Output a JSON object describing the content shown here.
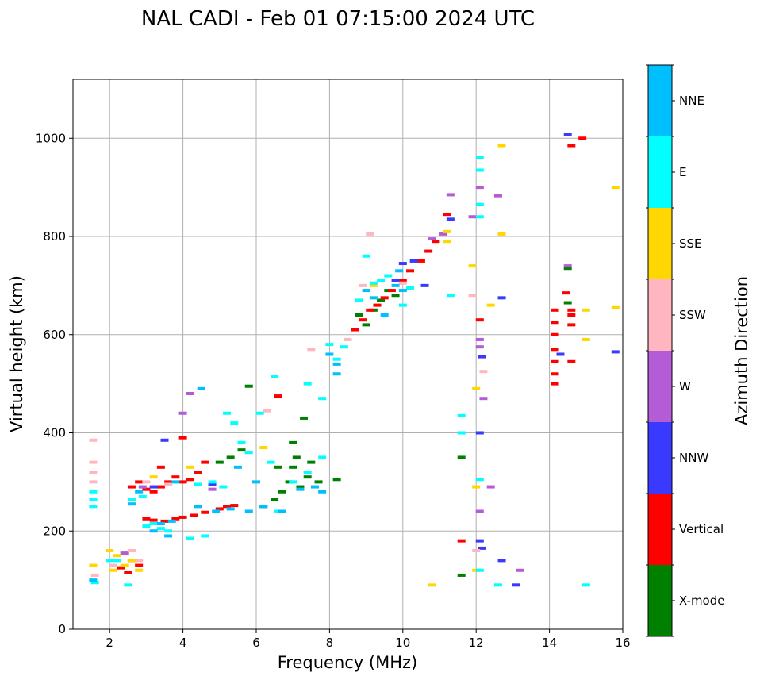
{
  "chart_data": {
    "type": "scatter",
    "title": "NAL CADI - Feb 01 07:15:00 2024 UTC",
    "xlabel": "Frequency (MHz)",
    "ylabel": "Virtual height (km)",
    "xlim": [
      1.0,
      16.0
    ],
    "ylim": [
      0,
      1120
    ],
    "xticks": [
      2,
      4,
      6,
      8,
      10,
      12,
      14,
      16
    ],
    "yticks": [
      0,
      200,
      400,
      600,
      800,
      1000
    ],
    "grid": true,
    "colorbar": {
      "label": "Azimuth Direction",
      "categories": [
        "X-mode",
        "Vertical",
        "NNW",
        "W",
        "SSW",
        "SSE",
        "E",
        "NNE"
      ],
      "colors": [
        "#008000",
        "#ff0000",
        "#3a3aff",
        "#b45bd6",
        "#ffb6c1",
        "#ffd700",
        "#00ffff",
        "#00bfff"
      ]
    },
    "series": [
      {
        "name": "X-mode",
        "points": [
          [
            5.0,
            340
          ],
          [
            5.3,
            350
          ],
          [
            5.6,
            365
          ],
          [
            6.2,
            250
          ],
          [
            6.5,
            265
          ],
          [
            6.7,
            280
          ],
          [
            6.9,
            300
          ],
          [
            7.0,
            330
          ],
          [
            7.1,
            350
          ],
          [
            7.2,
            290
          ],
          [
            7.4,
            310
          ],
          [
            7.5,
            340
          ],
          [
            7.7,
            300
          ],
          [
            8.2,
            305
          ],
          [
            8.8,
            640
          ],
          [
            9.0,
            620
          ],
          [
            9.2,
            650
          ],
          [
            9.4,
            670
          ],
          [
            9.6,
            690
          ],
          [
            9.8,
            680
          ],
          [
            7.3,
            430
          ],
          [
            14.5,
            735
          ],
          [
            14.5,
            665
          ],
          [
            11.6,
            350
          ],
          [
            11.6,
            110
          ],
          [
            5.8,
            495
          ],
          [
            7.0,
            380
          ],
          [
            6.6,
            330
          ]
        ]
      },
      {
        "name": "Vertical",
        "points": [
          [
            2.6,
            290
          ],
          [
            2.8,
            300
          ],
          [
            3.0,
            285
          ],
          [
            3.2,
            280
          ],
          [
            3.4,
            290
          ],
          [
            3.6,
            300
          ],
          [
            3.8,
            310
          ],
          [
            4.0,
            300
          ],
          [
            4.2,
            305
          ],
          [
            4.4,
            320
          ],
          [
            3.0,
            225
          ],
          [
            3.2,
            222
          ],
          [
            3.5,
            220
          ],
          [
            3.8,
            225
          ],
          [
            4.0,
            228
          ],
          [
            4.3,
            232
          ],
          [
            4.6,
            238
          ],
          [
            5.0,
            245
          ],
          [
            5.4,
            252
          ],
          [
            2.6,
            140
          ],
          [
            2.8,
            130
          ],
          [
            2.3,
            125
          ],
          [
            2.5,
            115
          ],
          [
            8.7,
            610
          ],
          [
            8.9,
            630
          ],
          [
            9.1,
            650
          ],
          [
            9.3,
            660
          ],
          [
            9.5,
            675
          ],
          [
            9.7,
            690
          ],
          [
            10.0,
            710
          ],
          [
            10.2,
            730
          ],
          [
            10.5,
            750
          ],
          [
            10.7,
            770
          ],
          [
            10.9,
            790
          ],
          [
            11.2,
            845
          ],
          [
            14.15,
            500
          ],
          [
            14.15,
            520
          ],
          [
            14.15,
            545
          ],
          [
            14.15,
            570
          ],
          [
            14.15,
            600
          ],
          [
            14.15,
            625
          ],
          [
            14.15,
            650
          ],
          [
            14.45,
            685
          ],
          [
            14.6,
            620
          ],
          [
            14.6,
            640
          ],
          [
            14.6,
            650
          ],
          [
            14.6,
            545
          ],
          [
            14.6,
            985
          ],
          [
            14.9,
            1000
          ],
          [
            12.1,
            630
          ],
          [
            11.6,
            180
          ],
          [
            6.6,
            475
          ],
          [
            3.4,
            330
          ],
          [
            4.0,
            390
          ],
          [
            4.6,
            340
          ],
          [
            5.2,
            250
          ]
        ]
      },
      {
        "name": "NNW",
        "points": [
          [
            3.5,
            385
          ],
          [
            3.2,
            290
          ],
          [
            10.0,
            745
          ],
          [
            10.3,
            750
          ],
          [
            10.6,
            700
          ],
          [
            11.3,
            835
          ],
          [
            12.1,
            400
          ],
          [
            12.15,
            555
          ],
          [
            12.15,
            165
          ],
          [
            12.1,
            180
          ],
          [
            12.7,
            675
          ],
          [
            15.8,
            565
          ],
          [
            13.1,
            90
          ],
          [
            12.7,
            140
          ],
          [
            14.3,
            560
          ],
          [
            14.5,
            1008
          ],
          [
            4.8,
            295
          ],
          [
            9.8,
            710
          ]
        ]
      },
      {
        "name": "W",
        "points": [
          [
            4.0,
            440
          ],
          [
            4.2,
            480
          ],
          [
            4.8,
            285
          ],
          [
            11.3,
            885
          ],
          [
            11.1,
            805
          ],
          [
            12.1,
            900
          ],
          [
            12.6,
            883
          ],
          [
            12.4,
            290
          ],
          [
            14.5,
            740
          ],
          [
            12.1,
            590
          ],
          [
            12.1,
            575
          ],
          [
            12.1,
            240
          ],
          [
            13.2,
            120
          ],
          [
            12.2,
            470
          ],
          [
            11.9,
            840
          ],
          [
            10.8,
            795
          ],
          [
            2.4,
            155
          ],
          [
            2.9,
            290
          ]
        ]
      },
      {
        "name": "SSW",
        "points": [
          [
            1.55,
            385
          ],
          [
            1.55,
            340
          ],
          [
            1.55,
            320
          ],
          [
            1.55,
            300
          ],
          [
            2.6,
            160
          ],
          [
            2.8,
            140
          ],
          [
            9.1,
            805
          ],
          [
            8.9,
            700
          ],
          [
            10.0,
            705
          ],
          [
            11.9,
            680
          ],
          [
            12.0,
            160
          ],
          [
            12.2,
            525
          ],
          [
            8.5,
            590
          ],
          [
            7.5,
            570
          ],
          [
            3.0,
            300
          ],
          [
            3.6,
            295
          ],
          [
            6.3,
            445
          ],
          [
            2.1,
            130
          ],
          [
            1.6,
            110
          ]
        ]
      },
      {
        "name": "SSE",
        "points": [
          [
            2.0,
            160
          ],
          [
            2.2,
            150
          ],
          [
            2.4,
            130
          ],
          [
            2.6,
            140
          ],
          [
            2.1,
            120
          ],
          [
            1.55,
            130
          ],
          [
            2.8,
            120
          ],
          [
            12.7,
            985
          ],
          [
            11.2,
            810
          ],
          [
            11.2,
            790
          ],
          [
            11.9,
            740
          ],
          [
            12.7,
            805
          ],
          [
            12.4,
            660
          ],
          [
            15.0,
            590
          ],
          [
            15.0,
            650
          ],
          [
            15.8,
            900
          ],
          [
            15.8,
            655
          ],
          [
            12.0,
            490
          ],
          [
            12.0,
            290
          ],
          [
            12.0,
            120
          ],
          [
            10.8,
            90
          ],
          [
            9.2,
            700
          ],
          [
            3.2,
            310
          ],
          [
            4.2,
            330
          ],
          [
            6.2,
            370
          ]
        ]
      },
      {
        "name": "E",
        "points": [
          [
            1.6,
            95
          ],
          [
            1.55,
            265
          ],
          [
            1.55,
            250
          ],
          [
            1.55,
            280
          ],
          [
            2.0,
            140
          ],
          [
            2.2,
            140
          ],
          [
            2.5,
            90
          ],
          [
            3.0,
            210
          ],
          [
            3.2,
            215
          ],
          [
            3.4,
            205
          ],
          [
            3.6,
            200
          ],
          [
            4.2,
            185
          ],
          [
            4.6,
            190
          ],
          [
            2.6,
            265
          ],
          [
            2.9,
            270
          ],
          [
            4.4,
            295
          ],
          [
            4.8,
            300
          ],
          [
            5.1,
            290
          ],
          [
            5.2,
            440
          ],
          [
            5.4,
            420
          ],
          [
            5.6,
            380
          ],
          [
            5.8,
            360
          ],
          [
            6.1,
            440
          ],
          [
            6.4,
            340
          ],
          [
            6.6,
            240
          ],
          [
            7.0,
            300
          ],
          [
            7.4,
            320
          ],
          [
            7.8,
            350
          ],
          [
            8.0,
            580
          ],
          [
            8.2,
            550
          ],
          [
            8.4,
            575
          ],
          [
            8.8,
            670
          ],
          [
            9.0,
            760
          ],
          [
            9.2,
            705
          ],
          [
            9.4,
            710
          ],
          [
            9.6,
            720
          ],
          [
            10.0,
            660
          ],
          [
            10.2,
            695
          ],
          [
            11.3,
            680
          ],
          [
            11.6,
            435
          ],
          [
            11.6,
            400
          ],
          [
            12.1,
            960
          ],
          [
            12.1,
            935
          ],
          [
            12.1,
            865
          ],
          [
            12.1,
            840
          ],
          [
            12.1,
            305
          ],
          [
            12.1,
            120
          ],
          [
            12.6,
            90
          ],
          [
            15.0,
            90
          ],
          [
            6.5,
            515
          ],
          [
            7.4,
            500
          ],
          [
            7.8,
            470
          ]
        ]
      },
      {
        "name": "NNE",
        "points": [
          [
            1.55,
            100
          ],
          [
            2.6,
            255
          ],
          [
            2.8,
            280
          ],
          [
            3.2,
            200
          ],
          [
            3.4,
            215
          ],
          [
            3.7,
            220
          ],
          [
            4.4,
            250
          ],
          [
            4.9,
            240
          ],
          [
            5.3,
            245
          ],
          [
            5.8,
            240
          ],
          [
            6.2,
            250
          ],
          [
            6.7,
            240
          ],
          [
            7.2,
            285
          ],
          [
            7.6,
            290
          ],
          [
            7.8,
            280
          ],
          [
            8.2,
            540
          ],
          [
            8.2,
            520
          ],
          [
            8.0,
            560
          ],
          [
            9.0,
            690
          ],
          [
            9.2,
            675
          ],
          [
            9.5,
            640
          ],
          [
            9.8,
            700
          ],
          [
            10.0,
            690
          ],
          [
            4.5,
            490
          ],
          [
            3.8,
            300
          ],
          [
            5.5,
            330
          ],
          [
            6.0,
            300
          ],
          [
            9.9,
            730
          ],
          [
            3.6,
            190
          ]
        ]
      }
    ]
  }
}
